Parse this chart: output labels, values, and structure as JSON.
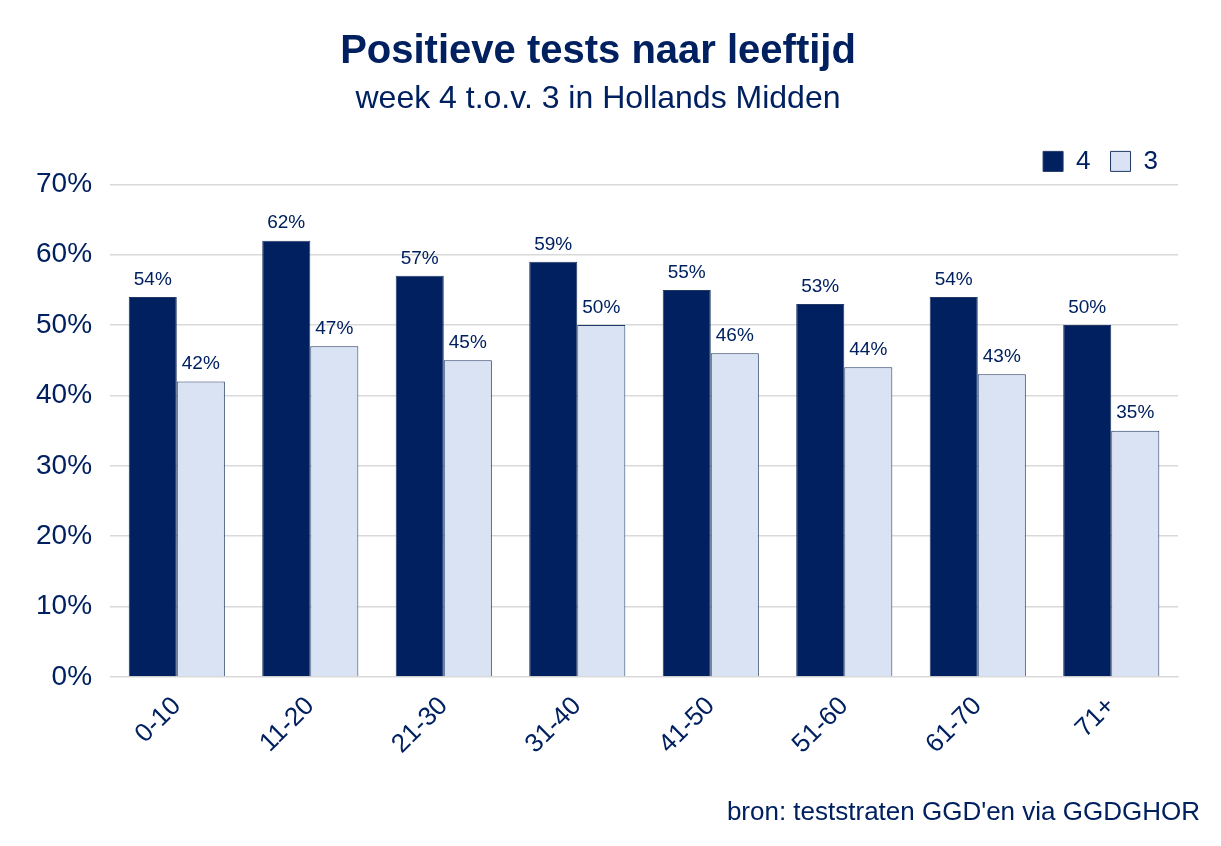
{
  "chart_data": {
    "type": "bar",
    "title": "Positieve tests naar leeftijd",
    "subtitle": "week 4 t.o.v. 3 in Hollands Midden",
    "categories": [
      "0-10",
      "11-20",
      "21-30",
      "31-40",
      "41-50",
      "51-60",
      "61-70",
      "71+"
    ],
    "series": [
      {
        "name": "4",
        "color": "#002060",
        "values": [
          54,
          62,
          57,
          59,
          55,
          53,
          54,
          50
        ],
        "value_labels": [
          "54%",
          "62%",
          "57%",
          "59%",
          "55%",
          "53%",
          "54%",
          "50%"
        ]
      },
      {
        "name": "3",
        "color": "#dae3f3",
        "values": [
          42,
          47,
          45,
          50,
          46,
          44,
          43,
          35
        ],
        "value_labels": [
          "42%",
          "47%",
          "45%",
          "50%",
          "46%",
          "44%",
          "43%",
          "35%"
        ]
      }
    ],
    "ylim": [
      0,
      70
    ],
    "yticks": [
      {
        "value": 0,
        "label": "0%"
      },
      {
        "value": 10,
        "label": "10%"
      },
      {
        "value": 20,
        "label": "20%"
      },
      {
        "value": 30,
        "label": "30%"
      },
      {
        "value": 40,
        "label": "40%"
      },
      {
        "value": 50,
        "label": "50%"
      },
      {
        "value": 60,
        "label": "60%"
      },
      {
        "value": 70,
        "label": "70%"
      }
    ],
    "grid": "y",
    "legend": "top right",
    "annotations": [
      "bron: teststraten GGD'en via GGDGHOR"
    ]
  }
}
